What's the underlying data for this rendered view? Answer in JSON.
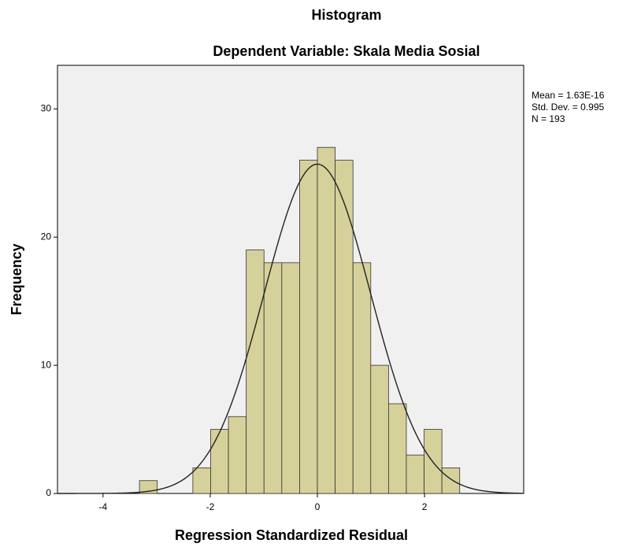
{
  "chart_data": {
    "type": "histogram",
    "title": "Histogram",
    "subtitle": "Dependent Variable: Skala Media Sosial",
    "x_label": "Regression Standardized Residual",
    "y_label": "Frequency",
    "bins": [
      -3.32,
      -2.988,
      -2.656,
      -2.324,
      -1.992,
      -1.66,
      -1.328,
      -0.996,
      -0.664,
      -0.332,
      0,
      0.332,
      0.664,
      0.996,
      1.328,
      1.66,
      1.992,
      2.324,
      2.656
    ],
    "values": [
      1,
      0,
      0,
      2,
      5,
      6,
      19,
      18,
      18,
      26,
      27,
      26,
      18,
      10,
      7,
      3,
      5,
      2
    ],
    "color": "#d6d19a",
    "xlim": [
      -4.85,
      3.85
    ],
    "xticks": [
      -4,
      -2,
      0,
      2
    ],
    "ylim": [
      0,
      33.4
    ],
    "yticks": [
      0,
      10,
      20,
      30
    ],
    "stats": {
      "mean": {
        "value": 1.63e-16,
        "label": "Mean = 1.63E-16"
      },
      "sd": {
        "value": 0.995,
        "label": "Std. Dev. = 0.995"
      },
      "n": {
        "value": 193,
        "label": "N = 193"
      }
    }
  }
}
